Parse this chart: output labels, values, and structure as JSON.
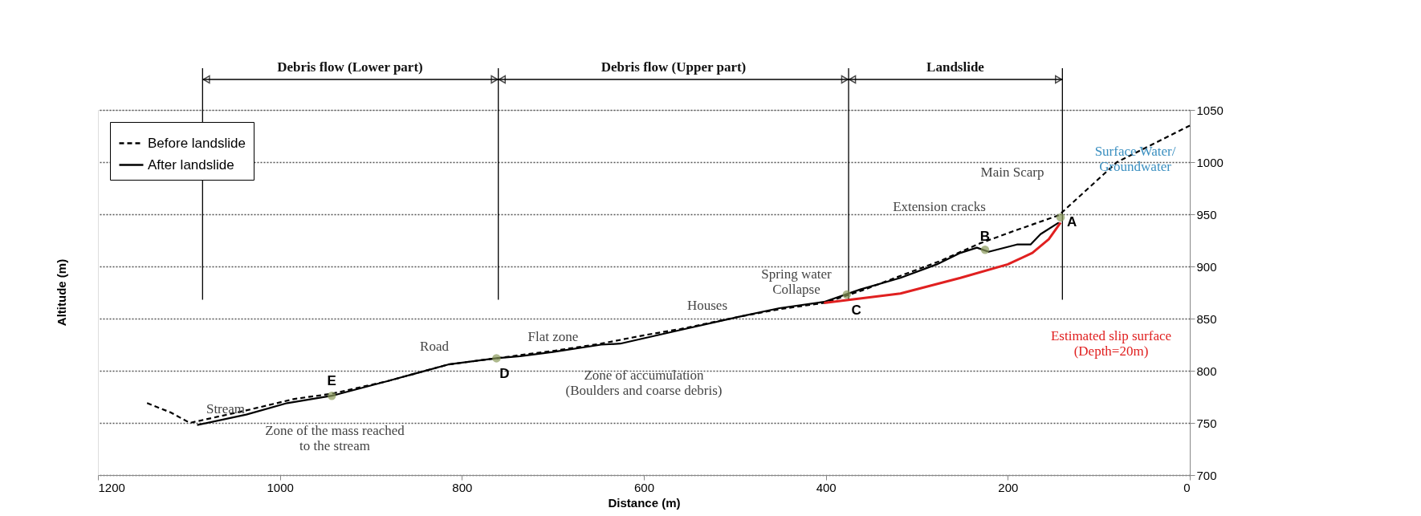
{
  "chart_data": {
    "type": "line",
    "xlabel": "Distance (m)",
    "ylabel": "Altitude (m)",
    "xlim": [
      1200,
      0
    ],
    "xticks": [
      1200,
      1000,
      800,
      600,
      400,
      200,
      0
    ],
    "ylim": [
      700,
      1050
    ],
    "yticks": [
      700,
      750,
      800,
      850,
      900,
      950,
      1000,
      1050
    ],
    "grid": "y",
    "legend": "top left",
    "series": [
      {
        "name": "Before landslide",
        "color": "#000000",
        "line_style": "dashed",
        "x": [
          1146,
          1120,
          1099,
          1037,
          984,
          943,
          882,
          815,
          762,
          736,
          700,
          647,
          600,
          560,
          494,
          451,
          402,
          360,
          318,
          275,
          231,
          190,
          144,
          80,
          0
        ],
        "values": [
          769,
          760,
          750,
          762,
          773,
          778,
          790,
          806,
          812,
          815,
          819,
          826,
          834,
          840,
          852,
          859,
          865,
          877,
          891,
          905,
          922,
          935,
          949,
          1000,
          1035
        ]
      },
      {
        "name": "After landslide",
        "color": "#000000",
        "line_style": "solid",
        "x": [
          1091,
          1037,
          992,
          943,
          882,
          815,
          762,
          736,
          700,
          647,
          626,
          560,
          494,
          451,
          402,
          362,
          318,
          278,
          252,
          234,
          221,
          190,
          175,
          164,
          144
        ],
        "values": [
          748,
          758,
          769,
          776,
          790,
          806,
          812,
          814,
          818,
          825,
          826,
          839,
          852,
          860,
          866,
          878,
          889,
          902,
          913,
          918,
          914,
          921,
          921,
          931,
          942
        ]
      },
      {
        "color": "#e02020",
        "line_style": "solid",
        "x": [
          402,
          318,
          252,
          200,
          173,
          155,
          142
        ],
        "values": [
          865,
          874,
          889,
          902,
          913,
          926,
          942
        ]
      },
      {
        "type": "scatter",
        "marker": "circle",
        "color": "#8a9a5b",
        "x": [
          142,
          225,
          377,
          762,
          943
        ],
        "values": [
          947,
          916,
          873,
          812,
          776
        ],
        "value_labels": [
          "A",
          "B",
          "C",
          "D",
          "E"
        ]
      }
    ],
    "ref_lines": [
      {
        "axis": "x",
        "value": 1085
      },
      {
        "axis": "x",
        "value": 760
      },
      {
        "axis": "x",
        "value": 375
      },
      {
        "axis": "x",
        "value": 140
      }
    ],
    "annotations": [
      "Debris flow (Lower part)",
      "Debris flow (Upper part)",
      "Landslide",
      "Stream",
      "Zone of the mass reached\nto the stream",
      "Road",
      "Flat zone",
      "Zone of accumulation\n(Boulders and coarse debris)",
      "Houses",
      "Spring water\nCollapse",
      "Extension cracks",
      "Main Scarp",
      "Surface Water/\nGroundwater",
      "Estimated slip surface\n(Depth=20m)"
    ]
  }
}
